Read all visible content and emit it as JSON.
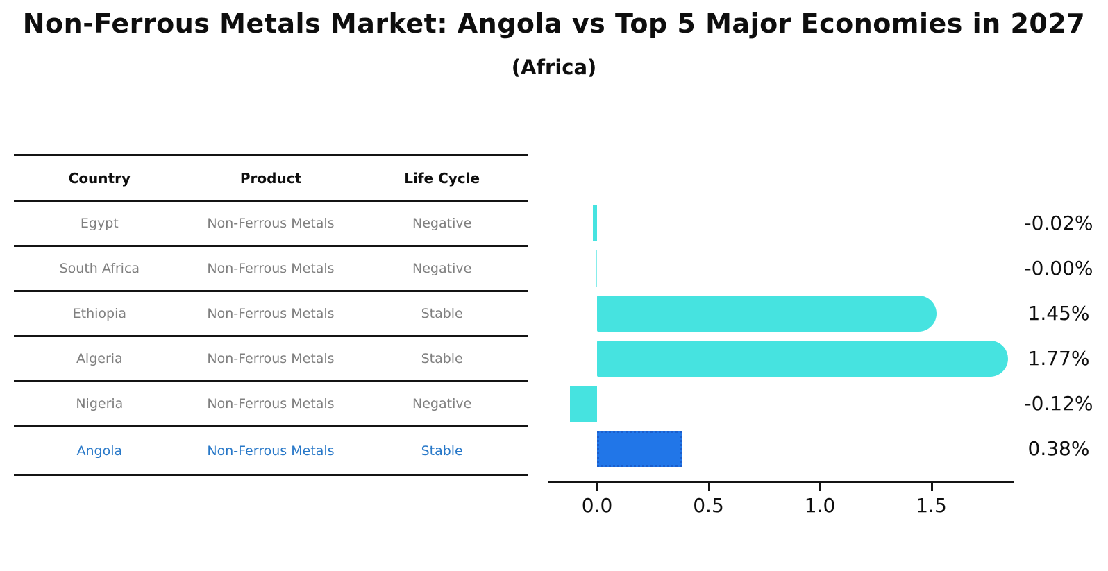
{
  "title": "Non-Ferrous Metals Market: Angola vs Top 5 Major Economies in 2027",
  "subtitle": "(Africa)",
  "table": {
    "headers": [
      "Country",
      "Product",
      "Life Cycle"
    ],
    "rows": [
      {
        "country": "Egypt",
        "product": "Non-Ferrous Metals",
        "life_cycle": "Negative",
        "highlight": false
      },
      {
        "country": "South Africa",
        "product": "Non-Ferrous Metals",
        "life_cycle": "Negative",
        "highlight": false
      },
      {
        "country": "Ethiopia",
        "product": "Non-Ferrous Metals",
        "life_cycle": "Stable",
        "highlight": false
      },
      {
        "country": "Algeria",
        "product": "Non-Ferrous Metals",
        "life_cycle": "Stable",
        "highlight": false
      },
      {
        "country": "Nigeria",
        "product": "Non-Ferrous Metals",
        "life_cycle": "Negative",
        "highlight": false
      },
      {
        "country": "Angola",
        "product": "Non-Ferrous Metals",
        "life_cycle": "Stable",
        "highlight": true
      }
    ]
  },
  "chart_data": {
    "type": "bar",
    "orientation": "horizontal",
    "categories": [
      "Egypt",
      "South Africa",
      "Ethiopia",
      "Algeria",
      "Nigeria",
      "Angola"
    ],
    "values": [
      -0.02,
      -0.004,
      1.45,
      1.77,
      -0.12,
      0.38
    ],
    "value_labels": [
      "-0.02%",
      "-0.00%",
      "1.45%",
      "1.77%",
      "-0.12%",
      "0.38%"
    ],
    "highlight_index": 5,
    "x_ticks": [
      0.0,
      0.5,
      1.0,
      1.5
    ],
    "x_tick_labels": [
      "0.0",
      "0.5",
      "1.0",
      "1.5"
    ],
    "xlim": [
      -0.22,
      1.87
    ],
    "grid": false,
    "legend": false,
    "colors": {
      "bar_default": "#46e3e0",
      "bar_highlight": "#2176e8",
      "bar_highlight_border": "#1b5ecc",
      "highlight_text": "#2878c8",
      "table_text": "#7f7f7f",
      "axis_text": "#0e0e0e"
    }
  }
}
